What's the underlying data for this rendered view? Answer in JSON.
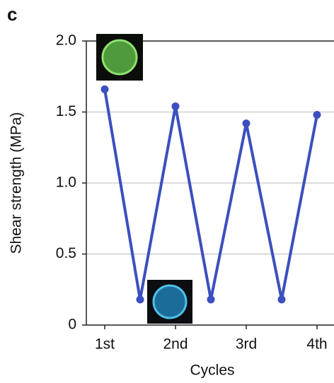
{
  "chart_data": {
    "type": "line",
    "panel_label": "c",
    "xlabel": "Cycles",
    "ylabel": "Shear strength (MPa)",
    "categories": [
      "1st",
      null,
      "2nd",
      null,
      "3rd",
      null,
      "4th"
    ],
    "values": [
      1.66,
      0.18,
      1.54,
      0.18,
      1.42,
      0.18,
      1.48
    ],
    "color": "#3b4fbf",
    "ylim": [
      0,
      2.0
    ],
    "yticks": [
      0,
      0.5,
      {
        "value": 1.0,
        "label": "1.0"
      },
      1.5,
      {
        "value": 2.0,
        "label": "2.0"
      }
    ],
    "grid": true
  }
}
